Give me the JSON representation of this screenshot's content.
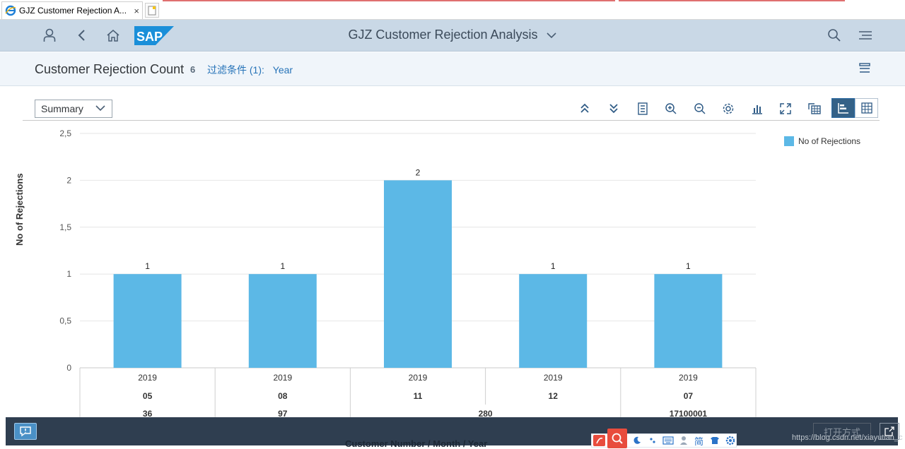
{
  "browser": {
    "tab_title": "GJZ Customer Rejection A...",
    "tab_close": "×"
  },
  "shell": {
    "app_title": "GJZ Customer Rejection Analysis",
    "logo_text": "SAP"
  },
  "header": {
    "title": "Customer Rejection Count",
    "count": "6",
    "filter_label": "过滤条件 (1):",
    "filter_value": "Year"
  },
  "toolbar": {
    "view_select": "Summary"
  },
  "legend": {
    "label": "No of Rejections",
    "color": "#5cb8e6"
  },
  "axis": {
    "y_title": "No of Rejections",
    "x_title": "Customer Number / Month / Year"
  },
  "chart_data": {
    "type": "bar",
    "title": "",
    "ylabel": "No of Rejections",
    "xlabel": "Customer Number / Month / Year",
    "ylim": [
      0,
      2.5
    ],
    "yticks": [
      "0",
      "0,5",
      "1",
      "1,5",
      "2",
      "2,5"
    ],
    "ytick_values": [
      0,
      0.5,
      1,
      1.5,
      2,
      2.5
    ],
    "categories": [
      {
        "year": "2019",
        "month": "05",
        "customer": "36"
      },
      {
        "year": "2019",
        "month": "08",
        "customer": "97"
      },
      {
        "year": "2019",
        "month": "11",
        "customer": "280"
      },
      {
        "year": "2019",
        "month": "12",
        "customer": "280"
      },
      {
        "year": "2019",
        "month": "07",
        "customer": "17100001"
      }
    ],
    "series": [
      {
        "name": "No of Rejections",
        "values": [
          1,
          1,
          2,
          1,
          1
        ],
        "color": "#5cb8e6"
      }
    ],
    "data_labels": [
      "1",
      "1",
      "2",
      "1",
      "1"
    ]
  },
  "bottom": {
    "open_with": "打开方式",
    "watermark": "https://blog.csdn.net/xiayutian_c"
  },
  "ime": {
    "simplified": "简"
  }
}
